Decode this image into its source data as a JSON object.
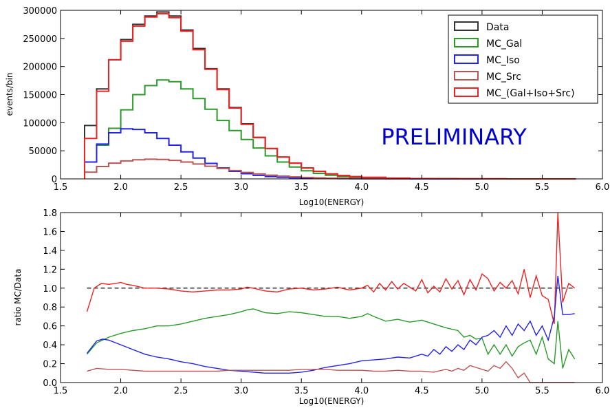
{
  "chart_data": [
    {
      "type": "line",
      "style": "step-histogram",
      "ylabel": "events/bin",
      "xlabel": "Log10(ENERGY)",
      "xlim": [
        1.5,
        6.0
      ],
      "ylim": [
        0,
        300000
      ],
      "xticks": [
        "1.5",
        "2.0",
        "2.5",
        "3.0",
        "3.5",
        "4.0",
        "4.5",
        "5.0",
        "5.5",
        "6.0"
      ],
      "yticks": [
        "0",
        "50000",
        "100000",
        "150000",
        "200000",
        "250000",
        "300000"
      ],
      "legend_position": "top-right",
      "annotation": "PRELIMINARY",
      "annotation_color": "#0000cc",
      "series": [
        {
          "name": "Data",
          "color": "#333333",
          "x": [
            1.7,
            1.8,
            1.9,
            2.0,
            2.1,
            2.2,
            2.3,
            2.4,
            2.5,
            2.6,
            2.7,
            2.8,
            2.9,
            3.0,
            3.1,
            3.2,
            3.3,
            3.4,
            3.5,
            3.6,
            3.7,
            3.8,
            3.9,
            4.0,
            4.2,
            4.4,
            4.6,
            4.8,
            5.0,
            5.2,
            5.4,
            5.6,
            5.78
          ],
          "y": [
            95000,
            160000,
            212000,
            248000,
            275000,
            290000,
            297000,
            290000,
            265000,
            232000,
            196000,
            160000,
            127000,
            98000,
            74000,
            54000,
            39000,
            28000,
            19500,
            13500,
            9000,
            6000,
            4000,
            2700,
            1300,
            650,
            300,
            150,
            80,
            40,
            20,
            10,
            0
          ]
        },
        {
          "name": "MC_Gal",
          "color": "#2a9a2a",
          "x": [
            1.7,
            1.8,
            1.9,
            2.0,
            2.1,
            2.2,
            2.3,
            2.4,
            2.5,
            2.6,
            2.7,
            2.8,
            2.9,
            3.0,
            3.1,
            3.2,
            3.3,
            3.4,
            3.5,
            3.6,
            3.7,
            3.8,
            3.9,
            4.0,
            4.2,
            4.4,
            4.6,
            4.8,
            5.0
          ],
          "y": [
            30000,
            60000,
            90000,
            123000,
            150000,
            166000,
            176000,
            173000,
            160000,
            143000,
            124000,
            104000,
            86000,
            70000,
            55000,
            41000,
            30000,
            21000,
            14500,
            9800,
            6500,
            4200,
            2800,
            1800,
            850,
            420,
            200,
            80,
            30
          ]
        },
        {
          "name": "MC_Iso",
          "color": "#2222ee",
          "x": [
            1.7,
            1.8,
            1.9,
            2.0,
            2.1,
            2.2,
            2.3,
            2.4,
            2.5,
            2.6,
            2.7,
            2.8,
            2.9,
            3.0,
            3.1,
            3.2,
            3.3,
            3.4,
            3.5,
            3.6,
            3.7,
            3.8,
            3.9,
            4.0,
            4.2,
            4.4,
            4.6,
            4.8,
            5.0
          ],
          "y": [
            30000,
            62000,
            82000,
            89000,
            88000,
            82000,
            72000,
            60000,
            48000,
            37000,
            27500,
            19500,
            13500,
            9200,
            6200,
            4200,
            2900,
            2000,
            1400,
            1000,
            700,
            500,
            350,
            250,
            130,
            70,
            40,
            20,
            10
          ]
        },
        {
          "name": "MC_Src",
          "color": "#bb5555",
          "x": [
            1.7,
            1.8,
            1.9,
            2.0,
            2.1,
            2.2,
            2.3,
            2.4,
            2.5,
            2.6,
            2.7,
            2.8,
            2.9,
            3.0,
            3.1,
            3.2,
            3.3,
            3.4,
            3.5,
            3.6,
            3.7,
            3.8,
            3.9,
            4.0,
            4.2,
            4.4
          ],
          "y": [
            12000,
            22000,
            28000,
            32000,
            34000,
            35000,
            34500,
            33000,
            30000,
            26500,
            22500,
            18500,
            14800,
            11500,
            8800,
            6600,
            4900,
            3600,
            2600,
            1800,
            1200,
            800,
            550,
            350,
            150,
            60
          ]
        },
        {
          "name": "MC_(Gal+Iso+Src)",
          "color": "#ee2222",
          "x": [
            1.7,
            1.8,
            1.9,
            2.0,
            2.1,
            2.2,
            2.3,
            2.4,
            2.5,
            2.6,
            2.7,
            2.8,
            2.9,
            3.0,
            3.1,
            3.2,
            3.3,
            3.4,
            3.5,
            3.6,
            3.7,
            3.8,
            3.9,
            4.0,
            4.2,
            4.4,
            4.6,
            4.8,
            5.0,
            5.2,
            5.4,
            5.6,
            5.78
          ],
          "y": [
            72000,
            156000,
            212000,
            245000,
            272000,
            288000,
            294000,
            287000,
            263000,
            230000,
            195000,
            159000,
            126000,
            97000,
            73500,
            54000,
            39000,
            28000,
            19300,
            13300,
            8900,
            5900,
            3900,
            2600,
            1250,
            630,
            300,
            150,
            80,
            40,
            20,
            10,
            0
          ]
        }
      ]
    },
    {
      "type": "line",
      "ylabel": "ratio MC/Data",
      "xlabel": "Log10(ENERGY)",
      "xlim": [
        1.5,
        6.0
      ],
      "ylim": [
        0.0,
        1.8
      ],
      "xticks": [
        "1.5",
        "2.0",
        "2.5",
        "3.0",
        "3.5",
        "4.0",
        "4.5",
        "5.0",
        "5.5",
        "6.0"
      ],
      "yticks": [
        "0.0",
        "0.2",
        "0.4",
        "0.6",
        "0.8",
        "1.0",
        "1.2",
        "1.4",
        "1.6",
        "1.8"
      ],
      "reference_line": 1.0,
      "series": [
        {
          "color": "#ee2222",
          "x": [
            1.72,
            1.78,
            1.84,
            1.9,
            1.96,
            2.0,
            2.05,
            2.1,
            2.2,
            2.3,
            2.4,
            2.5,
            2.6,
            2.7,
            2.8,
            2.9,
            3.0,
            3.05,
            3.1,
            3.2,
            3.3,
            3.4,
            3.5,
            3.6,
            3.7,
            3.8,
            3.9,
            4.0,
            4.05,
            4.1,
            4.15,
            4.2,
            4.25,
            4.3,
            4.35,
            4.4,
            4.45,
            4.5,
            4.55,
            4.6,
            4.65,
            4.7,
            4.75,
            4.8,
            4.85,
            4.9,
            4.95,
            5.0,
            5.05,
            5.1,
            5.15,
            5.2,
            5.25,
            5.3,
            5.35,
            5.4,
            5.45,
            5.5,
            5.55,
            5.6,
            5.63,
            5.67,
            5.72,
            5.77
          ],
          "y": [
            0.75,
            1.0,
            1.05,
            1.04,
            1.05,
            1.06,
            1.04,
            1.03,
            1.0,
            1.0,
            0.99,
            0.97,
            0.96,
            0.97,
            0.98,
            0.98,
            0.99,
            1.01,
            1.0,
            0.97,
            0.96,
            0.99,
            1.0,
            0.98,
            0.99,
            1.01,
            0.98,
            1.0,
            1.03,
            0.96,
            1.05,
            0.98,
            1.07,
            0.99,
            1.05,
            1.01,
            0.97,
            1.09,
            0.95,
            1.02,
            0.96,
            1.1,
            0.99,
            1.08,
            0.93,
            1.09,
            0.98,
            1.15,
            1.1,
            0.97,
            1.06,
            1.0,
            1.08,
            0.94,
            1.2,
            0.9,
            1.13,
            0.92,
            0.88,
            0.62,
            1.8,
            0.85,
            1.05,
            1.0
          ]
        },
        {
          "color": "#2a9a2a",
          "x": [
            1.72,
            1.8,
            1.9,
            2.0,
            2.1,
            2.2,
            2.3,
            2.4,
            2.5,
            2.6,
            2.7,
            2.8,
            2.9,
            3.0,
            3.05,
            3.1,
            3.2,
            3.3,
            3.4,
            3.5,
            3.6,
            3.7,
            3.8,
            3.9,
            4.0,
            4.05,
            4.1,
            4.2,
            4.3,
            4.4,
            4.5,
            4.6,
            4.7,
            4.8,
            4.85,
            4.9,
            4.95,
            5.0,
            5.05,
            5.1,
            5.15,
            5.2,
            5.25,
            5.3,
            5.35,
            5.4,
            5.45,
            5.5,
            5.55,
            5.6,
            5.63,
            5.67,
            5.72,
            5.77
          ],
          "y": [
            0.3,
            0.42,
            0.48,
            0.52,
            0.55,
            0.57,
            0.6,
            0.6,
            0.62,
            0.65,
            0.68,
            0.7,
            0.72,
            0.75,
            0.77,
            0.78,
            0.74,
            0.73,
            0.75,
            0.74,
            0.72,
            0.7,
            0.7,
            0.68,
            0.7,
            0.73,
            0.7,
            0.65,
            0.67,
            0.64,
            0.66,
            0.62,
            0.58,
            0.55,
            0.48,
            0.5,
            0.46,
            0.47,
            0.3,
            0.4,
            0.3,
            0.4,
            0.28,
            0.38,
            0.42,
            0.45,
            0.3,
            0.48,
            0.25,
            0.2,
            0.65,
            0.15,
            0.35,
            0.25
          ]
        },
        {
          "color": "#2222ee",
          "x": [
            1.72,
            1.8,
            1.85,
            1.9,
            2.0,
            2.1,
            2.2,
            2.3,
            2.4,
            2.5,
            2.6,
            2.7,
            2.8,
            2.9,
            3.0,
            3.1,
            3.2,
            3.3,
            3.4,
            3.5,
            3.6,
            3.7,
            3.8,
            3.9,
            4.0,
            4.1,
            4.2,
            4.3,
            4.4,
            4.5,
            4.55,
            4.6,
            4.65,
            4.7,
            4.75,
            4.8,
            4.85,
            4.9,
            4.95,
            5.0,
            5.05,
            5.1,
            5.15,
            5.2,
            5.25,
            5.3,
            5.35,
            5.4,
            5.45,
            5.5,
            5.55,
            5.6,
            5.63,
            5.67,
            5.72,
            5.77
          ],
          "y": [
            0.31,
            0.44,
            0.46,
            0.45,
            0.4,
            0.35,
            0.3,
            0.27,
            0.25,
            0.22,
            0.2,
            0.17,
            0.15,
            0.13,
            0.12,
            0.11,
            0.1,
            0.1,
            0.1,
            0.11,
            0.13,
            0.16,
            0.18,
            0.2,
            0.23,
            0.24,
            0.25,
            0.27,
            0.26,
            0.3,
            0.28,
            0.35,
            0.3,
            0.38,
            0.33,
            0.4,
            0.35,
            0.45,
            0.4,
            0.48,
            0.5,
            0.55,
            0.48,
            0.6,
            0.5,
            0.62,
            0.55,
            0.65,
            0.5,
            0.6,
            0.45,
            0.7,
            1.13,
            0.72,
            0.72,
            0.73
          ]
        },
        {
          "color": "#bb5555",
          "x": [
            1.72,
            1.8,
            1.9,
            2.0,
            2.1,
            2.2,
            2.3,
            2.4,
            2.5,
            2.6,
            2.7,
            2.8,
            2.9,
            3.0,
            3.1,
            3.2,
            3.3,
            3.4,
            3.5,
            3.6,
            3.7,
            3.8,
            3.9,
            4.0,
            4.1,
            4.2,
            4.3,
            4.4,
            4.5,
            4.6,
            4.7,
            4.75,
            4.8,
            4.85,
            4.9,
            4.95,
            5.0,
            5.05,
            5.1,
            5.15,
            5.2,
            5.25,
            5.3,
            5.35,
            5.4,
            5.5,
            5.6,
            5.7,
            5.77
          ],
          "y": [
            0.12,
            0.15,
            0.14,
            0.14,
            0.13,
            0.12,
            0.12,
            0.12,
            0.12,
            0.12,
            0.12,
            0.12,
            0.13,
            0.13,
            0.13,
            0.13,
            0.13,
            0.13,
            0.14,
            0.14,
            0.14,
            0.13,
            0.13,
            0.13,
            0.12,
            0.12,
            0.13,
            0.12,
            0.12,
            0.11,
            0.14,
            0.12,
            0.15,
            0.13,
            0.18,
            0.16,
            0.14,
            0.12,
            0.18,
            0.15,
            0.22,
            0.15,
            0.05,
            0.1,
            0.0,
            0.0,
            0.0,
            0.0,
            0.0
          ]
        }
      ]
    }
  ]
}
